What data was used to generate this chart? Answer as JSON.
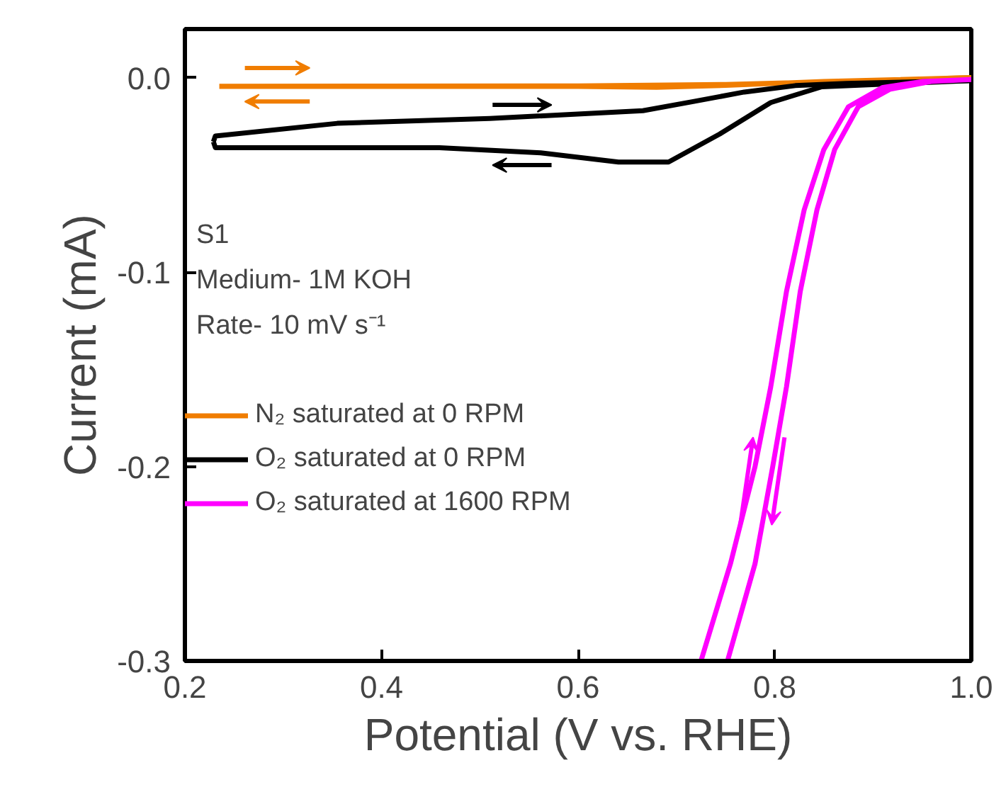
{
  "chart_data": {
    "type": "line",
    "xlabel": "Potential (V vs. RHE)",
    "ylabel": "Current (mA)",
    "xlim": [
      0.2,
      1.0
    ],
    "ylim": [
      -0.3,
      0.025
    ],
    "xticks": [
      {
        "value": 0.2,
        "label": "0.2"
      },
      {
        "value": 0.4,
        "label": "0.4"
      },
      {
        "value": 0.6,
        "label": "0.6"
      },
      {
        "value": 0.8,
        "label": "0.8"
      },
      {
        "value": 1.0,
        "label": "1.0"
      }
    ],
    "yticks": [
      {
        "value": 0.0,
        "label": "0.0"
      },
      {
        "value": -0.1,
        "label": "-0.1"
      },
      {
        "value": -0.2,
        "label": "-0.2"
      },
      {
        "value": -0.3,
        "label": "-0.3"
      }
    ],
    "series": [
      {
        "name": "N₂ saturated at 0 RPM",
        "color": "#f07d00",
        "x": [
          0.235,
          0.4,
          0.6,
          0.68,
          0.75,
          0.85,
          1.0,
          0.9,
          0.75,
          0.6,
          0.4,
          0.235
        ],
        "values": [
          -0.0045,
          -0.0045,
          -0.0045,
          -0.005,
          -0.004,
          -0.002,
          0.0,
          -0.0015,
          -0.0035,
          -0.0042,
          -0.0043,
          -0.0044
        ]
      },
      {
        "name": "O₂ saturated at 0 RPM",
        "color": "#000000",
        "x": [
          0.229,
          0.231,
          0.355,
          0.51,
          0.666,
          0.717,
          0.769,
          0.821,
          0.873,
          1.0
        ],
        "values": [
          -0.033,
          -0.03,
          -0.0235,
          -0.021,
          -0.017,
          -0.0123,
          -0.0074,
          -0.0041,
          -0.003,
          -0.0015
        ]
      },
      {
        "color": "#000000",
        "x": [
          1.0,
          0.848,
          0.796,
          0.744,
          0.692,
          0.641,
          0.562,
          0.459,
          0.231,
          0.229
        ],
        "values": [
          -0.0015,
          -0.0047,
          -0.0128,
          -0.029,
          -0.0434,
          -0.0434,
          -0.0387,
          -0.036,
          -0.036,
          -0.033
        ]
      },
      {
        "name": "O₂ saturated at 1600 RPM",
        "color": "#ff00ff",
        "x": [
          0.725,
          0.755,
          0.78,
          0.796,
          0.812,
          0.83,
          0.85,
          0.875,
          0.91,
          0.95,
          1.0,
          0.959,
          0.917,
          0.885,
          0.861,
          0.843,
          0.826,
          0.812,
          0.798,
          0.78,
          0.752
        ],
        "values": [
          -0.3,
          -0.25,
          -0.2,
          -0.159,
          -0.11,
          -0.068,
          -0.037,
          -0.015,
          -0.005,
          -0.002,
          -0.001,
          -0.002,
          -0.006,
          -0.015,
          -0.037,
          -0.068,
          -0.11,
          -0.159,
          -0.2,
          -0.25,
          -0.3
        ]
      }
    ],
    "annotations": [
      "S1",
      "Medium- 1M KOH",
      "Rate- 10 mV s⁻¹"
    ],
    "legend": "left",
    "grid": false,
    "marker": "none",
    "line_style": "solid"
  }
}
